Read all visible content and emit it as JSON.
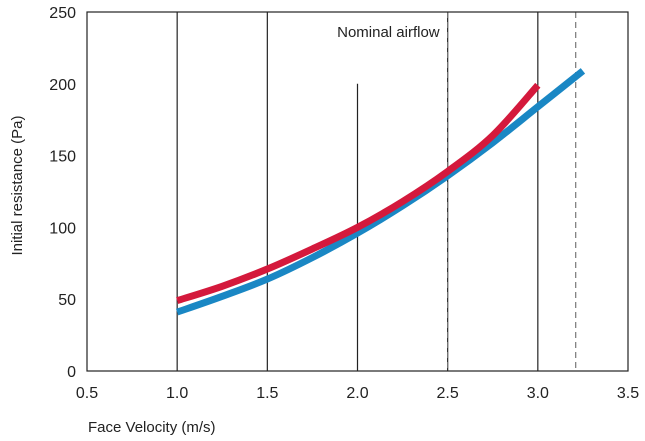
{
  "chart_data": {
    "type": "line",
    "xlabel": "Face Velocity (m/s)",
    "ylabel": "Initial resistance (Pa)",
    "xlim": [
      0.5,
      3.5
    ],
    "ylim": [
      0,
      250
    ],
    "x_ticks": [
      "0.5",
      "1.0",
      "1.5",
      "2.0",
      "2.5",
      "3.0",
      "3.5"
    ],
    "y_ticks": [
      "0",
      "50",
      "100",
      "150",
      "200",
      "250"
    ],
    "grid": "vertical lines at x ticks",
    "series": [
      {
        "color": "#d4193c",
        "x": [
          1.0,
          1.25,
          1.5,
          1.75,
          2.0,
          2.25,
          2.5,
          2.75,
          3.0
        ],
        "y": [
          49,
          59,
          71,
          85,
          100,
          118,
          139,
          164,
          199
        ]
      },
      {
        "color": "#1a87c4",
        "x": [
          1.0,
          1.25,
          1.5,
          1.75,
          2.0,
          2.25,
          2.5,
          2.75,
          3.0,
          3.25
        ],
        "y": [
          41,
          52,
          64,
          79,
          96,
          115,
          136,
          159,
          184,
          209
        ]
      }
    ],
    "annotations": [
      {
        "text": "Nominal airflow",
        "x": 2.5
      },
      {
        "text": "",
        "x": 3.21
      }
    ]
  }
}
